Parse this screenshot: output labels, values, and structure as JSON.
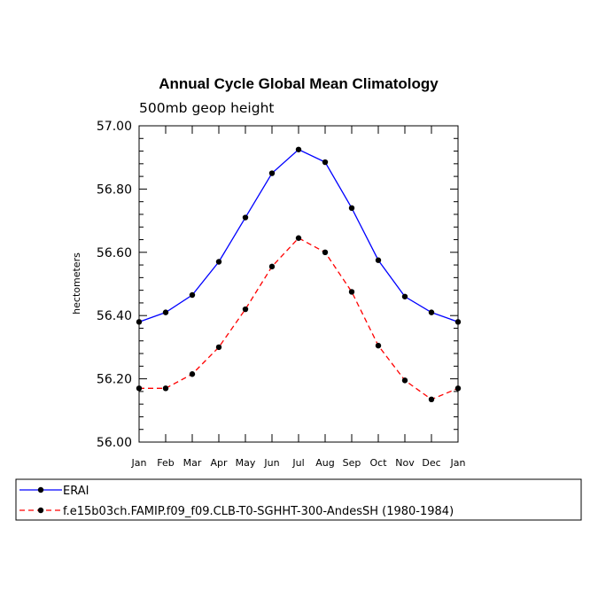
{
  "chart_data": {
    "type": "line",
    "title": "Annual Cycle Global Mean Climatology",
    "subtitle": "500mb geop height",
    "xlabel": "",
    "ylabel": "hectometers",
    "categories": [
      "Jan",
      "Feb",
      "Mar",
      "Apr",
      "May",
      "Jun",
      "Jul",
      "Aug",
      "Sep",
      "Oct",
      "Nov",
      "Dec",
      "Jan"
    ],
    "ylim": [
      56.0,
      57.0
    ],
    "yticks": [
      "56.00",
      "56.20",
      "56.40",
      "56.60",
      "56.80",
      "57.00"
    ],
    "series": [
      {
        "name": "ERAI",
        "color": "#0000ff",
        "dash": "solid",
        "values": [
          56.38,
          56.41,
          56.465,
          56.57,
          56.71,
          56.85,
          56.925,
          56.885,
          56.74,
          56.575,
          56.46,
          56.41,
          56.38
        ]
      },
      {
        "name": "f.e15b03ch.FAMIP.f09_f09.CLB-T0-SGHHT-300-AndesSH (1980-1984)",
        "color": "#ff0000",
        "dash": "dashed",
        "values": [
          56.17,
          56.17,
          56.215,
          56.3,
          56.42,
          56.555,
          56.645,
          56.6,
          56.475,
          56.305,
          56.195,
          56.135,
          56.17
        ]
      }
    ],
    "grid": false,
    "legend": "bottom"
  }
}
